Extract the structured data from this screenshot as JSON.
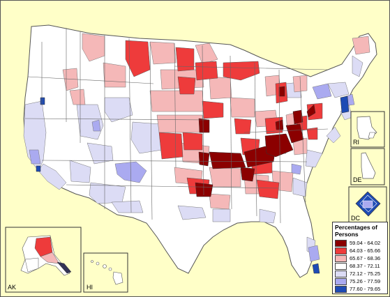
{
  "map": {
    "legend_title": "Percentages of Persons",
    "legend": [
      {
        "label": "59.04 - 64.02",
        "color": "#8b0000"
      },
      {
        "label": "64.03 - 65.66",
        "color": "#ee3b3b"
      },
      {
        "label": "65.67 - 68.36",
        "color": "#f5b8b8"
      },
      {
        "label": "68.37 - 72.11",
        "color": "#ffffff"
      },
      {
        "label": "72.12 - 75.25",
        "color": "#dcdcf5"
      },
      {
        "label": "75.26 - 77.59",
        "color": "#aaaaf0"
      },
      {
        "label": "77.60 - 79.65",
        "color": "#1e4bb4"
      }
    ],
    "insets": {
      "ak": "AK",
      "hi": "HI",
      "ri": "RI",
      "de": "DE",
      "dc": "DC"
    },
    "colors": {
      "background": "#ffffc8",
      "boundary": "#555555",
      "land_default": "#ffffff"
    }
  }
}
